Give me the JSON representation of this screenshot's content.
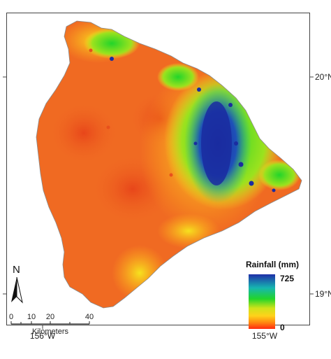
{
  "axes": {
    "bottom_ticks": [
      "156°W",
      "155°W"
    ],
    "right_ticks": [
      "20°N",
      "19°N"
    ]
  },
  "legend": {
    "title": "Rainfall (mm)",
    "max_label": "725",
    "min_label": "0",
    "colors": [
      "#1f2fa8",
      "#16b7b0",
      "#22d52a",
      "#cfe31a",
      "#ffd21a",
      "#ff8a10",
      "#ff2a0f"
    ]
  },
  "scale_bar": {
    "ticks": [
      "0",
      "10",
      "20",
      "40"
    ],
    "unit": "Kilometers"
  },
  "north_arrow": {
    "letter": "N"
  },
  "map_colors": {
    "dry": "#f06a22",
    "dry_dark": "#e8501c",
    "mid": "#ffb21a",
    "yellow": "#f6e21e",
    "green": "#2fcf4a",
    "teal": "#1cb8a4",
    "blue": "#1e44b8",
    "deep_blue": "#1a2ca0"
  }
}
